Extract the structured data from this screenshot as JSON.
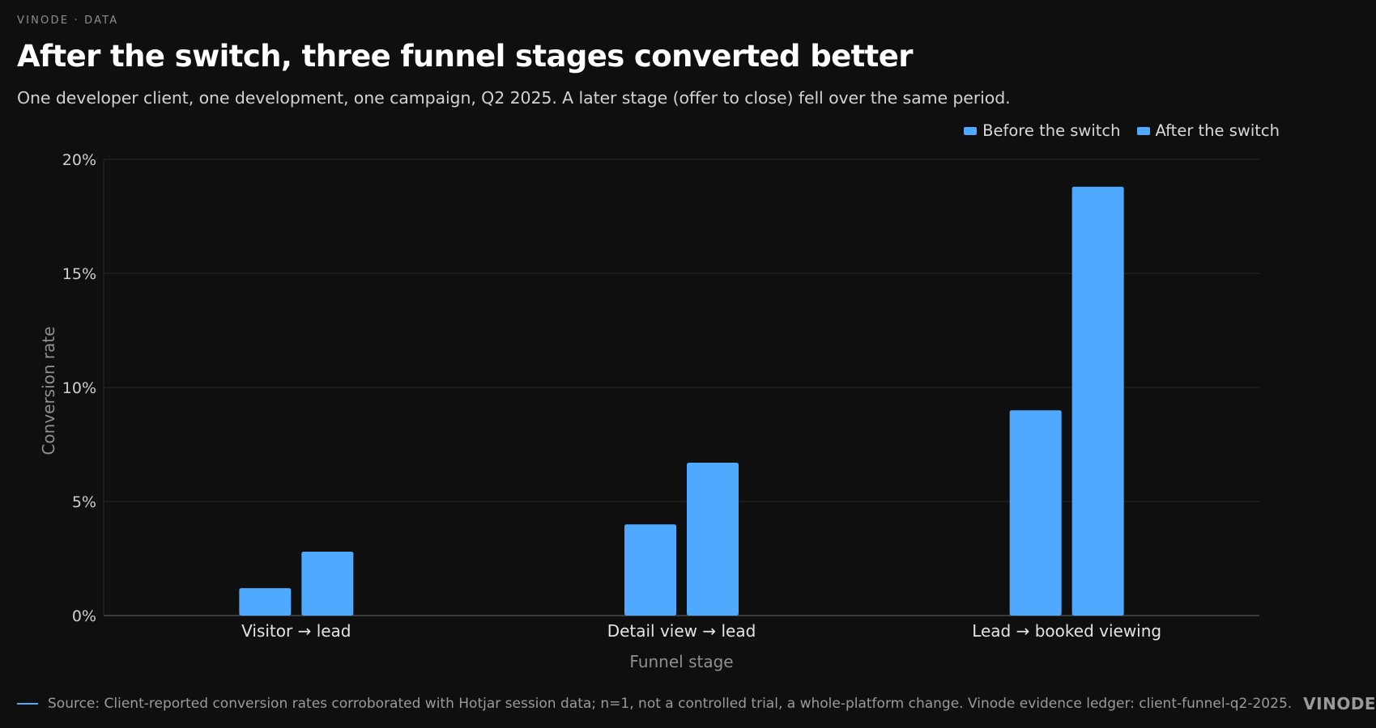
{
  "header": {
    "eyebrow": "VINODE · DATA",
    "title": "After the switch, three funnel stages converted better",
    "subtitle": "One developer client, one development, one campaign, Q2 2025. A later stage (offer to close) fell over the same period."
  },
  "colors": {
    "background": "#0f0f10",
    "before": "#4ea9ff",
    "after": "#4ea9ff",
    "grid": "#2a2a2c",
    "axis": "#4a4a4e"
  },
  "chart_data": {
    "type": "bar",
    "title": "After the switch, three funnel stages converted better",
    "xlabel": "Funnel stage",
    "ylabel": "Conversion rate",
    "categories": [
      "Visitor → lead",
      "Detail view → lead",
      "Lead → booked viewing"
    ],
    "series": [
      {
        "name": "Before the switch",
        "values": [
          1.2,
          4.0,
          9.0
        ]
      },
      {
        "name": "After the switch",
        "values": [
          2.8,
          6.7,
          18.8
        ]
      }
    ],
    "ylim": [
      0,
      20
    ],
    "yticks": [
      0,
      5,
      10,
      15,
      20
    ],
    "ytick_labels": [
      "0%",
      "5%",
      "10%",
      "15%",
      "20%"
    ],
    "grid": true,
    "legend_position": "top-right"
  },
  "footer": {
    "source": "Source: Client-reported conversion rates corroborated with Hotjar session data; n=1, not a controlled trial, a whole-platform change. Vinode evidence ledger: client-funnel-q2-2025.",
    "brand": "VINODE"
  }
}
